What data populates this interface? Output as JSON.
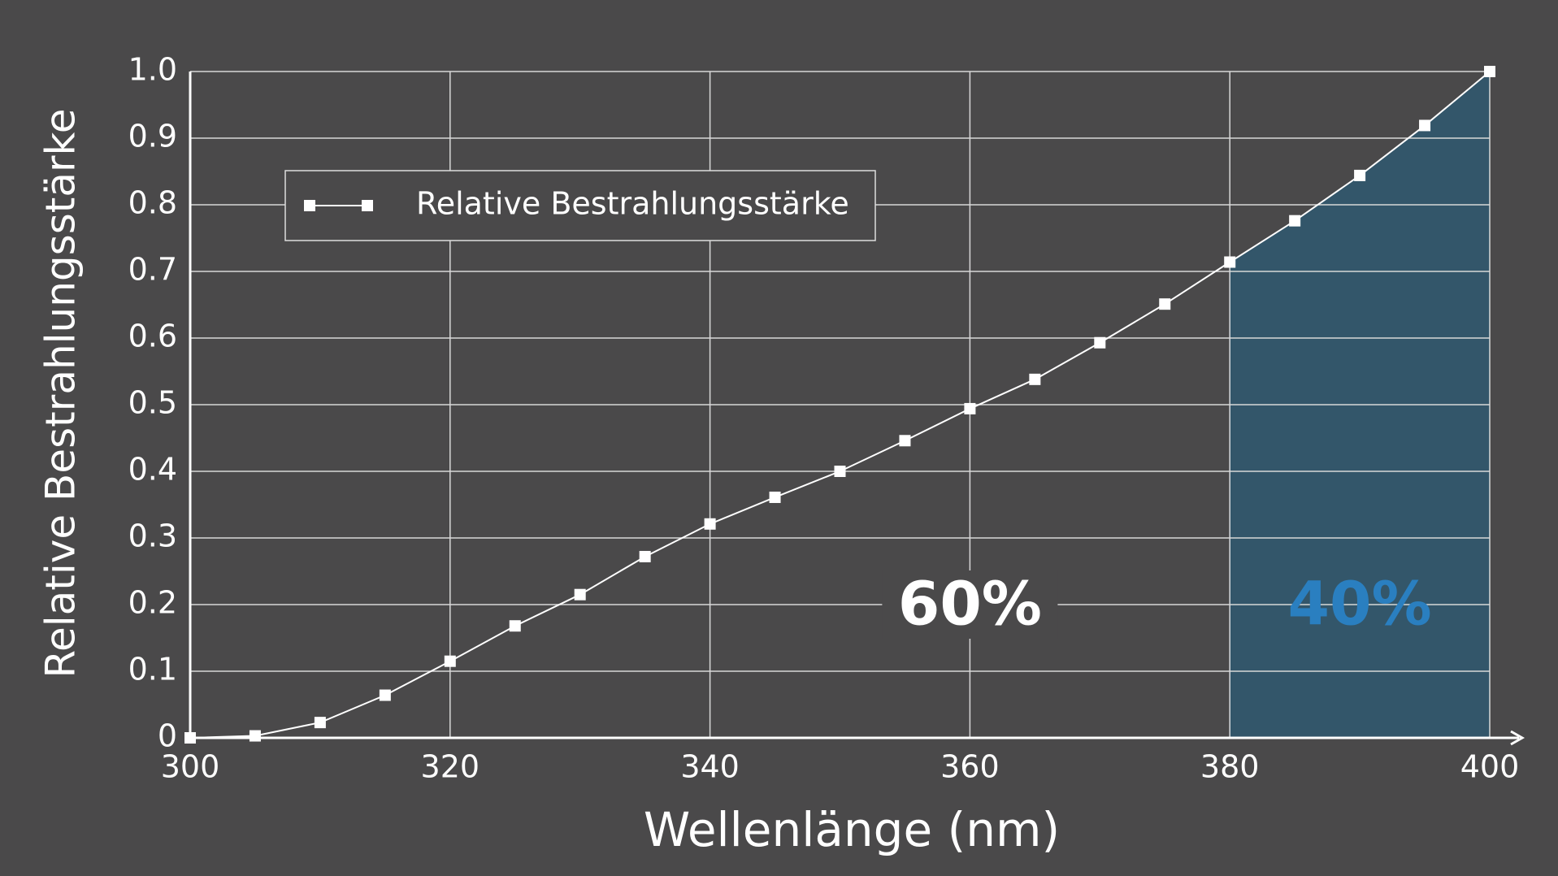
{
  "chart_data": {
    "type": "line",
    "x_label": "Wellenlänge (nm)",
    "y_label": "Relative Bestrahlungsstärke",
    "x": [
      300,
      305,
      310,
      315,
      320,
      325,
      330,
      335,
      340,
      345,
      350,
      355,
      360,
      365,
      370,
      375,
      380,
      385,
      390,
      395,
      400
    ],
    "series": [
      {
        "name": "Relative Bestrahlungsstärke",
        "color": "#ffffff",
        "values": [
          0,
          0.003,
          0.023,
          0.064,
          0.115,
          0.168,
          0.215,
          0.272,
          0.321,
          0.361,
          0.4,
          0.446,
          0.494,
          0.538,
          0.593,
          0.651,
          0.714,
          0.776,
          0.844,
          0.919,
          1.0
        ]
      }
    ],
    "xlim": [
      300,
      400
    ],
    "xticks": [
      300,
      320,
      340,
      360,
      380,
      400
    ],
    "ylim": [
      0,
      1
    ],
    "yticks": [
      0,
      0.1,
      0.2,
      0.3,
      0.4,
      0.5,
      0.6,
      0.7,
      0.8,
      0.9,
      {
        "value": 1,
        "label": "1.0"
      }
    ],
    "grid": true,
    "legend": "upper left",
    "shaded_region": {
      "x": [
        380,
        400
      ],
      "color": "#33566a"
    },
    "annotations": [
      {
        "text": "60%",
        "x": 360,
        "y": 0.2,
        "color": "#ffffff"
      },
      {
        "text": "40%",
        "x": 390,
        "y": 0.2,
        "color": "#2a7fc0"
      }
    ]
  }
}
